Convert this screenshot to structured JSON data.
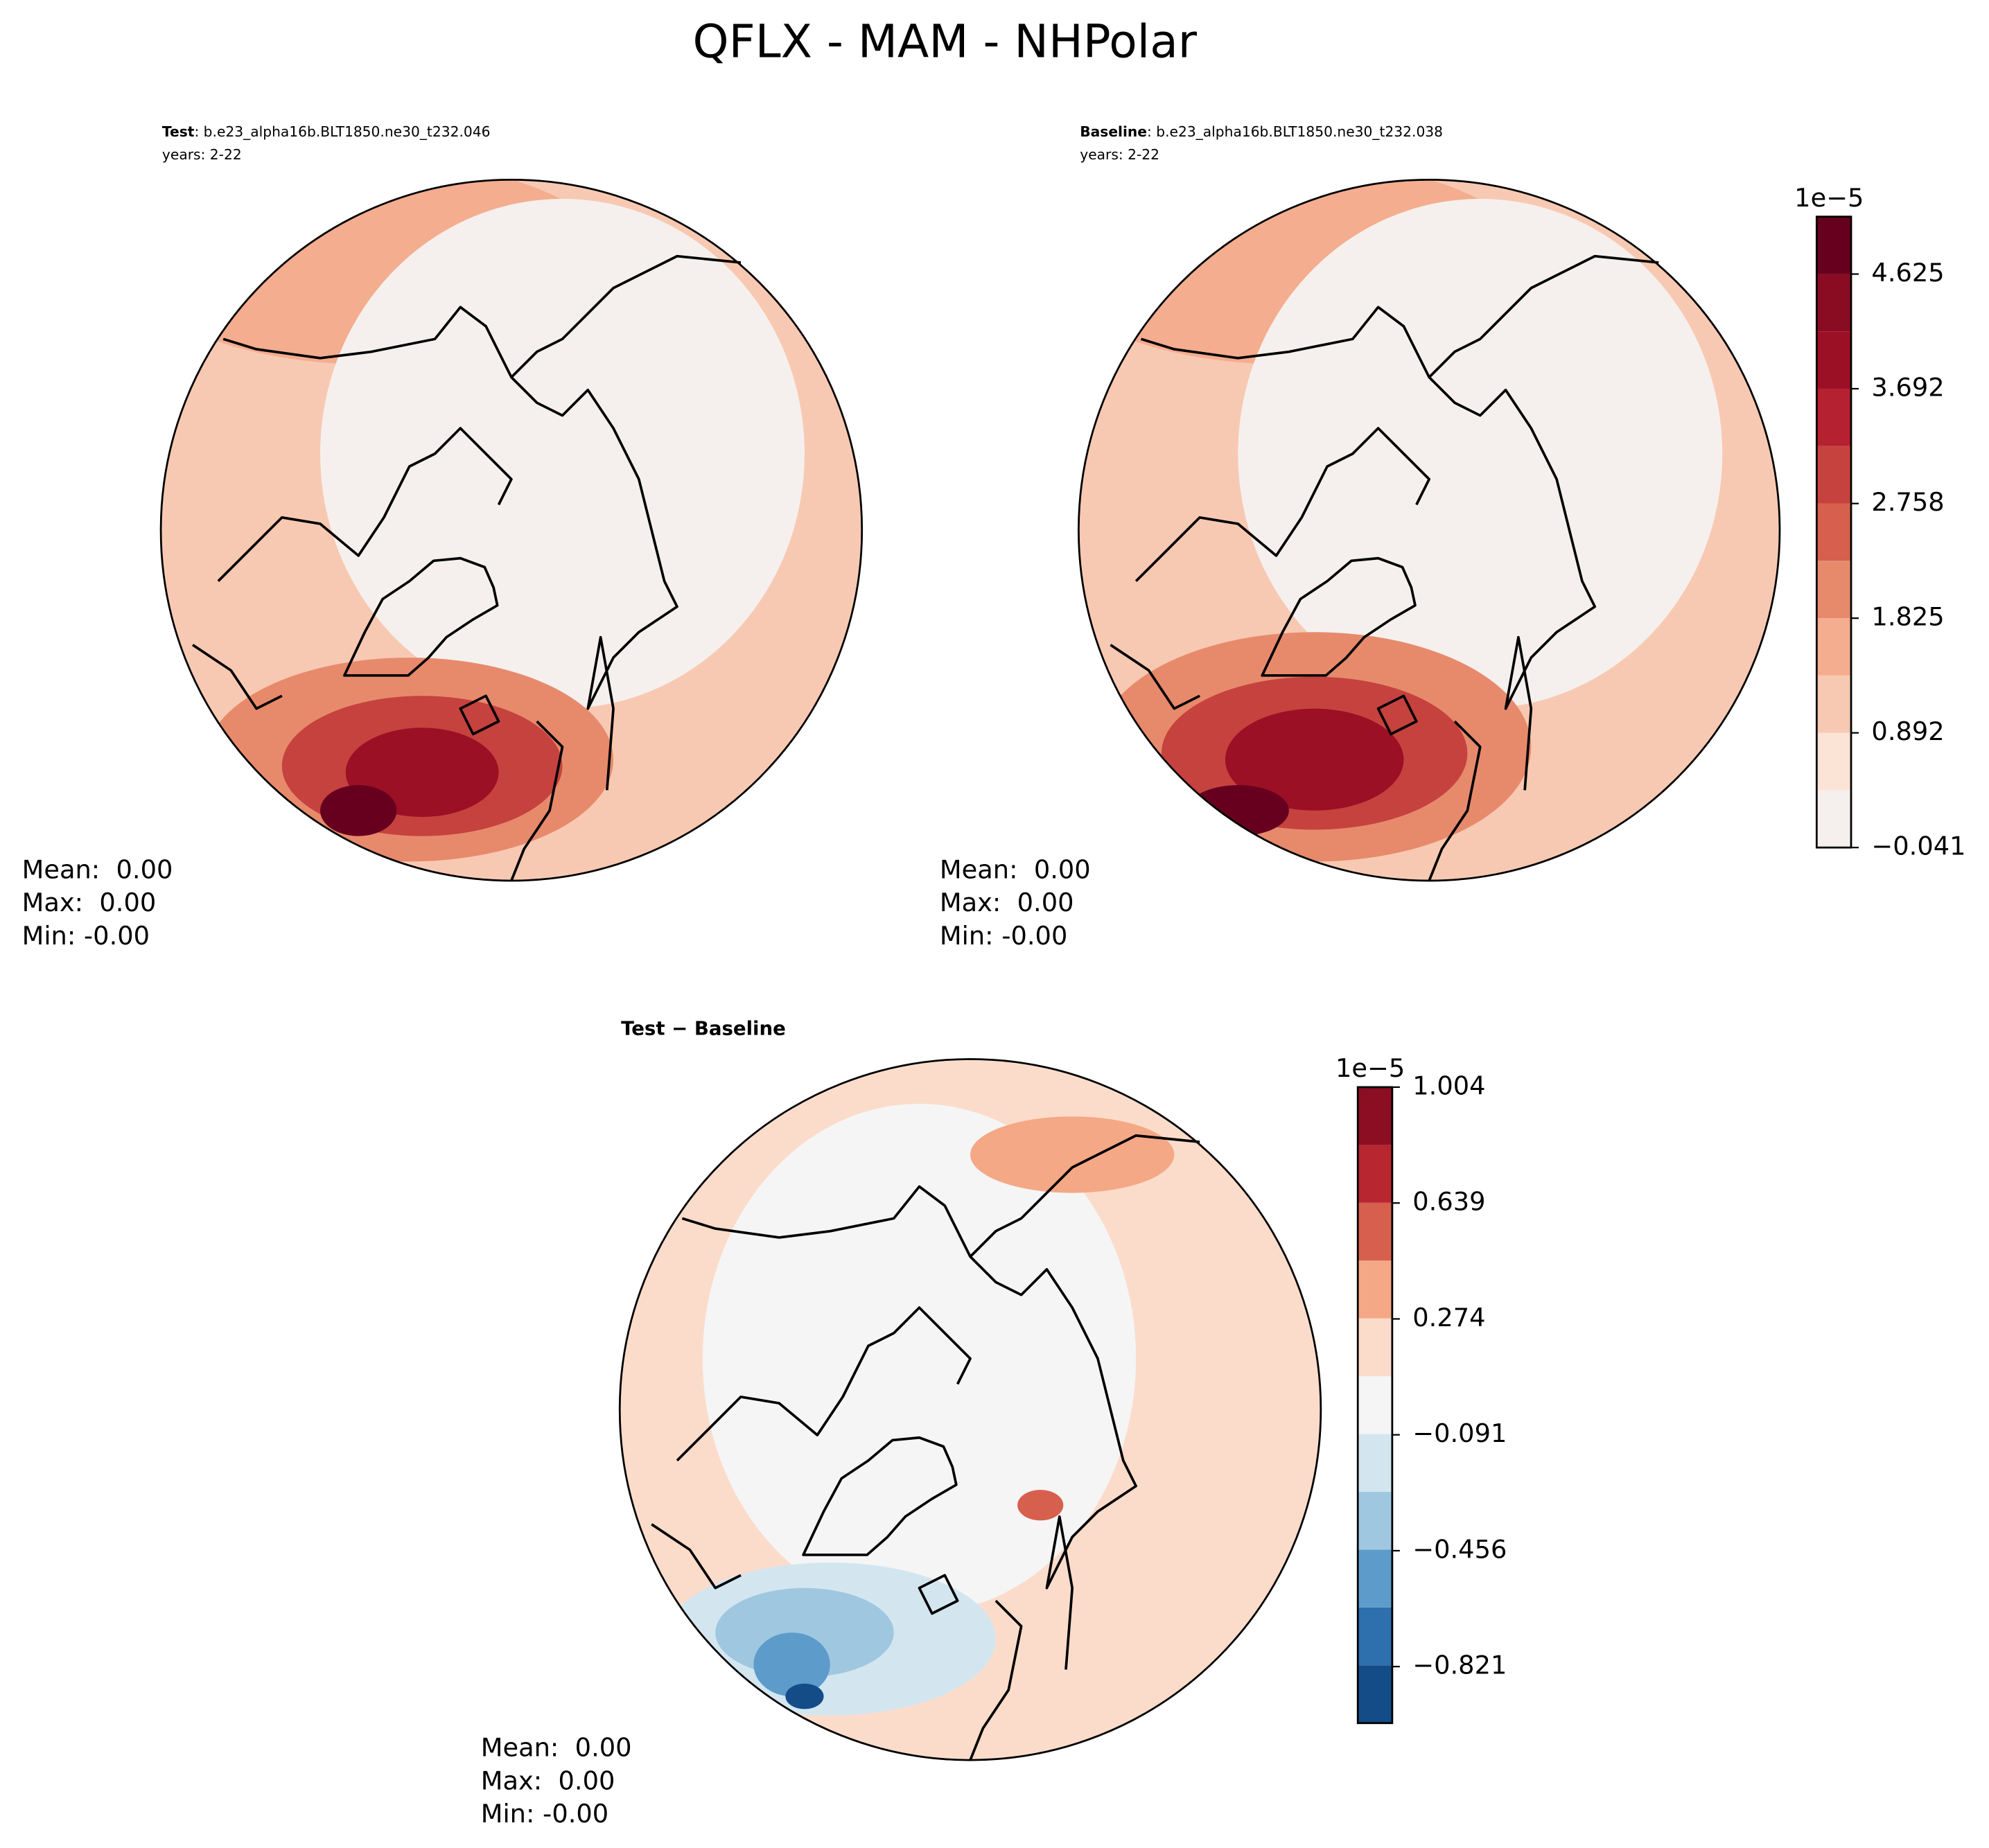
{
  "figure": {
    "title": "QFLX - MAM - NHPolar"
  },
  "chart_data": [
    {
      "type": "polar-contour",
      "label": "Test",
      "subtitle": ": b.e23_alpha16b.BLT1850.ne30_t232.046",
      "years": "years: 2-22",
      "stats": [
        "Mean:  0.00",
        "Max:  0.00",
        "Min: -0.00"
      ]
    },
    {
      "type": "polar-contour",
      "label": "Baseline",
      "subtitle": ": b.e23_alpha16b.BLT1850.ne30_t232.038",
      "years": "years: 2-22",
      "stats": [
        "Mean:  0.00",
        "Max:  0.00",
        "Min: -0.00"
      ],
      "colorbar": {
        "exponent_label": "1e−5",
        "ylim": [
          -0.041,
          5.092
        ],
        "yticks": [
          {
            "value": -0.041,
            "label": "−0.041"
          },
          0.892,
          1.825,
          2.758,
          3.692,
          4.625
        ],
        "colors": [
          "#f5f0ed",
          "#fbe3d6",
          "#f8c9b2",
          "#f4ad8e",
          "#e78a6c",
          "#d6604d",
          "#c6423e",
          "#b52130",
          "#9b1025",
          "#8a0c23",
          "#67001f"
        ]
      }
    },
    {
      "type": "polar-contour",
      "label": "Test − Baseline",
      "stats": [
        "Mean:  0.00",
        "Max:  0.00",
        "Min: -0.00"
      ],
      "colorbar": {
        "exponent_label": "1e−5",
        "ylim": [
          -0.999,
          1.004
        ],
        "yticks": [
          {
            "value": -0.821,
            "label": "−0.821"
          },
          {
            "value": -0.456,
            "label": "−0.456"
          },
          {
            "value": -0.091,
            "label": "−0.091"
          },
          0.274,
          0.639,
          1.004
        ],
        "colors": [
          "#134c87",
          "#2e6fad",
          "#5d9bca",
          "#9fc8e0",
          "#d3e6f0",
          "#f5f5f5",
          "#fbdccb",
          "#f4a885",
          "#d6604d",
          "#b8262f",
          "#8b0e23"
        ]
      }
    }
  ]
}
